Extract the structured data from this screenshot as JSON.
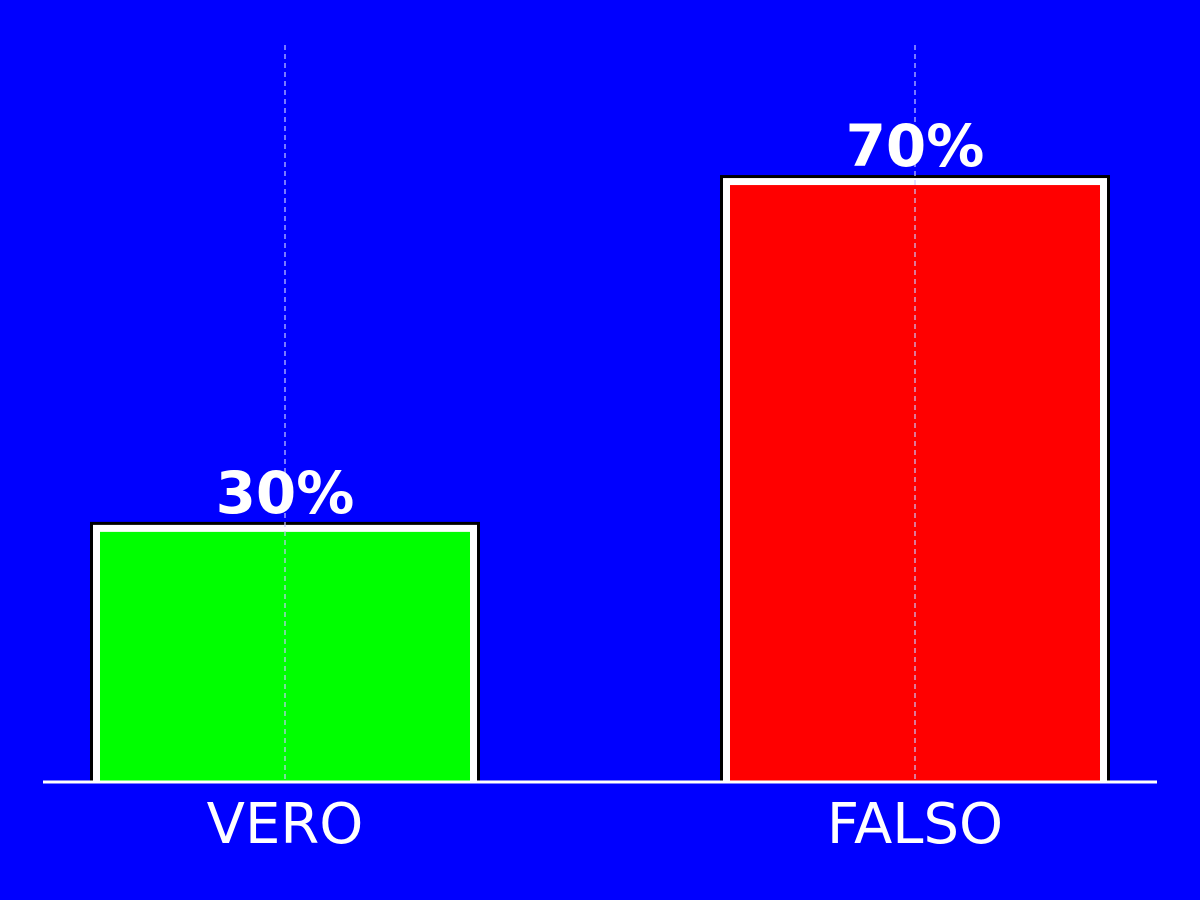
{
  "chart_data": {
    "type": "bar",
    "categories": [
      "VERO",
      "FALSO"
    ],
    "values": [
      30,
      70
    ],
    "value_labels": [
      "30%",
      "70%"
    ],
    "bar_colors": [
      "#00ff00",
      "#ff0000"
    ],
    "background_color": "#0000ff",
    "text_color": "#ffffff",
    "ylim": [
      0,
      85
    ],
    "grid": "vertical dashed lines at category centers",
    "title": "",
    "xlabel": "",
    "ylabel": ""
  }
}
